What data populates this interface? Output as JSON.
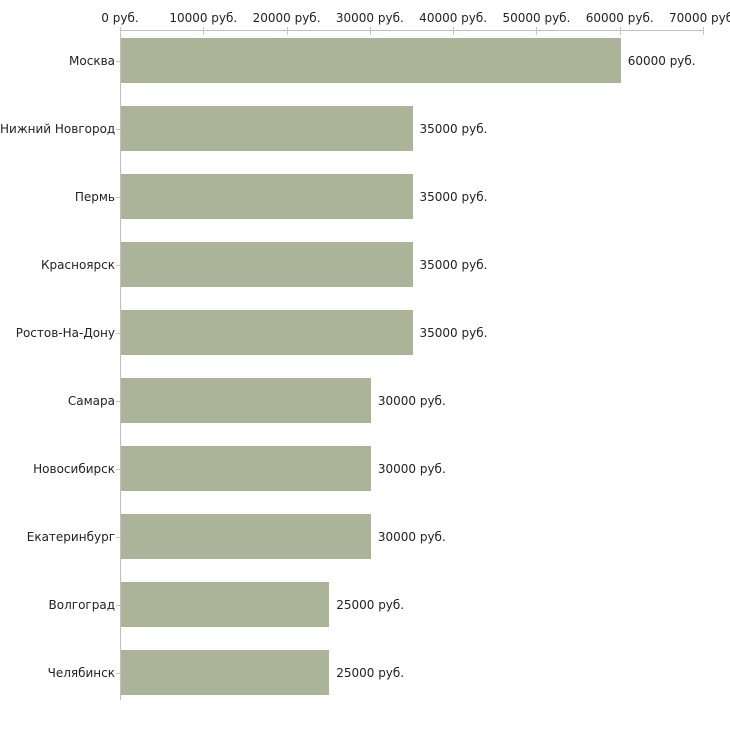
{
  "chart_data": {
    "type": "bar",
    "orientation": "horizontal",
    "title": "",
    "categories": [
      "Москва",
      "Нижний Новгород",
      "Пермь",
      "Красноярск",
      "Ростов-На-Дону",
      "Самара",
      "Новосибирск",
      "Екатеринбург",
      "Волгоград",
      "Челябинск"
    ],
    "values": [
      60000,
      35000,
      35000,
      35000,
      35000,
      30000,
      30000,
      30000,
      25000,
      25000
    ],
    "value_labels": [
      "60000 руб.",
      "35000 руб.",
      "35000 руб.",
      "35000 руб.",
      "35000 руб.",
      "30000 руб.",
      "30000 руб.",
      "30000 руб.",
      "25000 руб.",
      "25000 руб."
    ],
    "unit": "руб.",
    "x_axis": {
      "position": "top",
      "min": 0,
      "max": 70000,
      "tick_values": [
        0,
        10000,
        20000,
        30000,
        40000,
        50000,
        60000,
        70000
      ],
      "tick_labels": [
        "0 руб.",
        "10000 руб.",
        "20000 руб.",
        "30000 руб.",
        "40000 руб.",
        "50000 руб.",
        "60000 руб.",
        "70000 руб."
      ],
      "grid": false
    },
    "legend": "none",
    "colors": {
      "bar": "#abb399",
      "axis_line": "#c0c0c0",
      "tick_mark": "#cccc99",
      "text": "#222222",
      "background": "#ffffff"
    }
  }
}
